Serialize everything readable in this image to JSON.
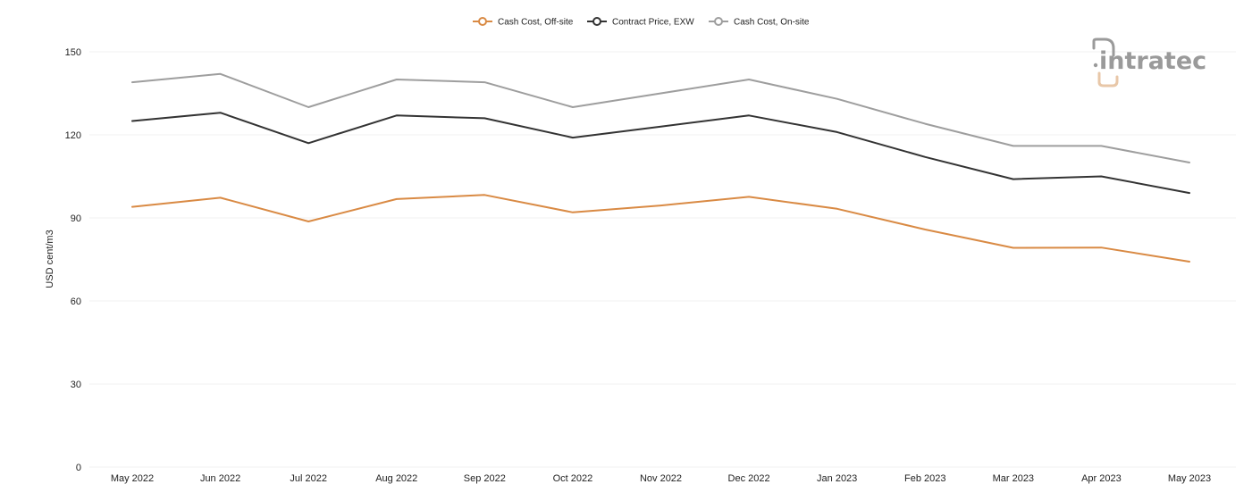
{
  "logo": {
    "text": "intratec",
    "colors": {
      "primary": "#9a9a9a",
      "accent": "#e8c7a8"
    }
  },
  "chart_data": {
    "type": "line",
    "ylabel": "USD cent/m3",
    "ylim": [
      0,
      150
    ],
    "yticks": [
      0,
      30,
      60,
      90,
      120,
      150
    ],
    "grid": true,
    "legend_position": "top-center",
    "categories": [
      "May 2022",
      "Jun 2022",
      "Jul 2022",
      "Aug 2022",
      "Sep 2022",
      "Oct 2022",
      "Nov 2022",
      "Dec 2022",
      "Jan 2023",
      "Feb 2023",
      "Mar 2023",
      "Apr 2023",
      "May 2023"
    ],
    "series": [
      {
        "name": "Cash Cost, Off-site",
        "color": "#d98a44",
        "values": [
          94,
          97.3,
          88.7,
          96.8,
          98.3,
          92,
          94.5,
          97.6,
          93.3,
          85.8,
          79.2,
          79.3,
          74.2
        ]
      },
      {
        "name": "Contract Price, EXW",
        "color": "#333333",
        "values": [
          125,
          128,
          117,
          127,
          126,
          119,
          123,
          127,
          121,
          112,
          104,
          105,
          99
        ]
      },
      {
        "name": "Cash Cost, On-site",
        "color": "#9e9e9e",
        "values": [
          139,
          142,
          130,
          140,
          139,
          130,
          135,
          140,
          133,
          124,
          116,
          116,
          110
        ]
      }
    ]
  }
}
